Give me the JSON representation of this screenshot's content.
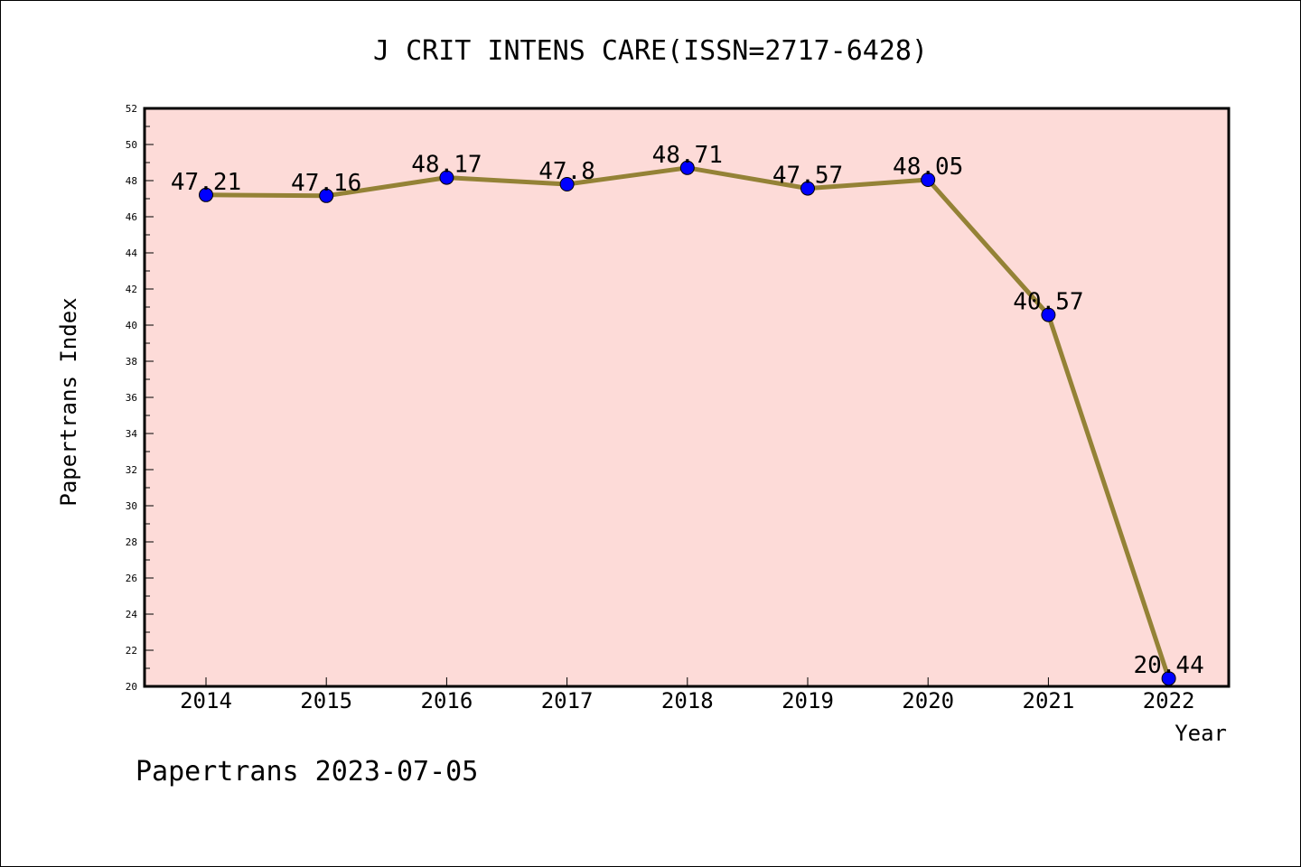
{
  "chart_data": {
    "type": "line",
    "title": "J CRIT INTENS CARE(ISSN=2717-6428)",
    "xlabel": "Year",
    "ylabel": "Papertrans Index",
    "categories": [
      "2014",
      "2015",
      "2016",
      "2017",
      "2018",
      "2019",
      "2020",
      "2021",
      "2022"
    ],
    "values": [
      47.21,
      47.16,
      48.17,
      47.8,
      48.71,
      47.57,
      48.05,
      40.57,
      20.44
    ],
    "data_labels": [
      "47.21",
      "47.16",
      "48.17",
      "47.8",
      "48.71",
      "47.57",
      "48.05",
      "40.57",
      "20.44"
    ],
    "ylim": [
      20,
      52
    ],
    "yticks": [
      20,
      22,
      24,
      26,
      28,
      30,
      32,
      34,
      36,
      38,
      40,
      42,
      44,
      46,
      48,
      50,
      52
    ],
    "grid": false,
    "legend": "none",
    "colors": {
      "plot_background": "#fddbd8",
      "line": "#948236",
      "marker": "#0000ff"
    }
  },
  "footer": "Papertrans 2023-07-05"
}
